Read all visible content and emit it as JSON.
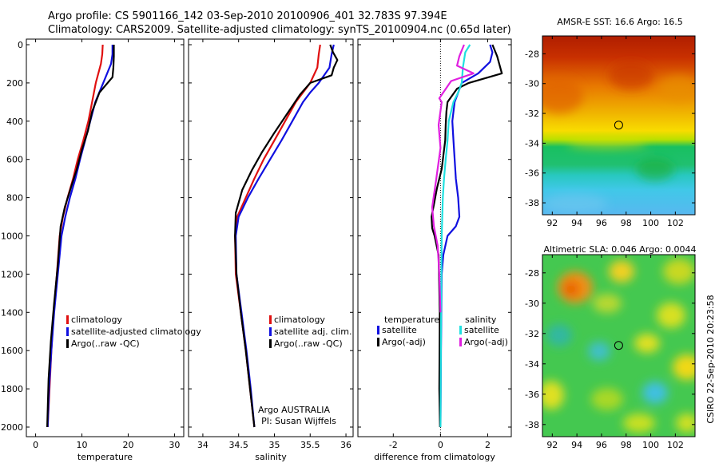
{
  "header": {
    "line1": "Argo profile: CS 5901166_142 03-Sep-2010 20100906_401 32.783S 97.394E",
    "line2": "Climatology: CARS2009. Satellite-adjusted climatology: synTS_20100904.nc (0.65d later)"
  },
  "side_text": "CSIRO 22-Sep-2010 20:23:58",
  "colors": {
    "climatology": "#e01010",
    "satellite": "#1010e0",
    "argo": "#000000",
    "sal_satellite": "#20e0e0",
    "sal_argo": "#e020e0"
  },
  "chart_data": [
    {
      "type": "line",
      "xlabel": "temperature",
      "ylabel": "",
      "xlim": [
        -2,
        32
      ],
      "ylim": [
        2050,
        0
      ],
      "xticks": [
        0,
        10,
        20,
        30
      ],
      "yticks": [
        0,
        200,
        400,
        600,
        800,
        1000,
        1200,
        1400,
        1600,
        1800,
        2000
      ],
      "legend": [
        "climatology",
        "satellite-adjusted climatology",
        "Argo(..raw -QC)"
      ],
      "series": [
        {
          "name": "climatology",
          "color": "climatology",
          "x": [
            14.5,
            14.4,
            14.1,
            13.0,
            12.2,
            11.4,
            10.3,
            9.1,
            8.1,
            6.9,
            5.9,
            5.2,
            4.6,
            3.9,
            3.4,
            3.0,
            2.6
          ],
          "y": [
            0,
            50,
            100,
            200,
            300,
            400,
            500,
            600,
            700,
            800,
            900,
            1000,
            1200,
            1400,
            1600,
            1800,
            2000
          ]
        },
        {
          "name": "satellite-adjusted climatology",
          "color": "satellite",
          "x": [
            16.6,
            16.6,
            16.3,
            14.6,
            12.9,
            11.8,
            10.7,
            9.6,
            8.6,
            7.4,
            6.4,
            5.6,
            4.8,
            4.0,
            3.4,
            2.9,
            2.6
          ],
          "y": [
            0,
            50,
            100,
            200,
            300,
            400,
            500,
            600,
            700,
            800,
            900,
            1000,
            1200,
            1400,
            1600,
            1800,
            2000
          ]
        },
        {
          "name": "Argo(..raw -QC)",
          "color": "argo",
          "x": [
            16.9,
            16.9,
            16.8,
            16.6,
            13.8,
            12.2,
            11.3,
            10.0,
            8.9,
            7.6,
            6.3,
            5.4,
            4.8,
            4.0,
            3.3,
            2.8,
            2.5
          ],
          "y": [
            0,
            60,
            120,
            170,
            250,
            350,
            450,
            550,
            650,
            750,
            850,
            950,
            1150,
            1350,
            1550,
            1750,
            2000
          ]
        }
      ]
    },
    {
      "type": "line",
      "xlabel": "salinity",
      "ylabel": "",
      "xlim": [
        33.8,
        36.1
      ],
      "ylim": [
        2050,
        0
      ],
      "xticks": [
        34,
        34.5,
        35,
        35.5,
        36
      ],
      "legend": [
        "climatology",
        "satellite adj. clim.",
        "Argo(..raw -QC)"
      ],
      "annotation": [
        "Argo AUSTRALIA",
        "PI: Susan Wijffels"
      ],
      "series": [
        {
          "name": "climatology",
          "color": "climatology",
          "x": [
            35.64,
            35.62,
            35.6,
            35.5,
            35.4,
            35.3,
            35.15,
            35.0,
            34.85,
            34.72,
            34.6,
            34.48,
            34.45,
            34.46,
            34.53,
            34.6,
            34.66,
            34.72
          ],
          "y": [
            0,
            50,
            120,
            200,
            250,
            300,
            400,
            500,
            600,
            700,
            800,
            900,
            1000,
            1200,
            1400,
            1600,
            1800,
            2000
          ]
        },
        {
          "name": "satellite adj. clim.",
          "color": "satellite",
          "x": [
            35.83,
            35.8,
            35.77,
            35.62,
            35.5,
            35.4,
            35.25,
            35.1,
            34.94,
            34.78,
            34.63,
            34.5,
            34.46,
            34.47,
            34.54,
            34.61,
            34.67,
            34.72
          ],
          "y": [
            0,
            50,
            120,
            200,
            250,
            300,
            400,
            500,
            600,
            700,
            800,
            900,
            1000,
            1200,
            1400,
            1600,
            1800,
            2000
          ]
        },
        {
          "name": "Argo(..raw -QC)",
          "color": "argo",
          "x": [
            35.78,
            35.82,
            35.88,
            35.83,
            35.8,
            35.5,
            35.36,
            35.18,
            35.0,
            34.83,
            34.68,
            34.55,
            34.46,
            34.45,
            34.47,
            34.53,
            34.6,
            34.66,
            34.72
          ],
          "y": [
            0,
            40,
            80,
            120,
            160,
            200,
            260,
            360,
            460,
            560,
            660,
            760,
            880,
            1000,
            1200,
            1400,
            1600,
            1800,
            2000
          ]
        }
      ]
    },
    {
      "type": "line",
      "xlabel": "difference from climatology",
      "ylabel": "",
      "xlim": [
        -3.5,
        3.0
      ],
      "ylim": [
        2050,
        0
      ],
      "xticks": [
        -2,
        0,
        2
      ],
      "legend_headers": [
        "temperature",
        "salinity"
      ],
      "legend": [
        "satellite",
        "Argo(-adj)",
        "satellite",
        "Argo(-adj)"
      ],
      "series": [
        {
          "name": "satellite",
          "color": "satellite",
          "x": [
            2.1,
            2.2,
            2.1,
            1.6,
            0.9,
            0.6,
            0.5,
            0.55,
            0.6,
            0.65,
            0.75,
            0.8,
            0.65,
            0.3,
            0.12,
            0.05,
            0.02,
            0.0
          ],
          "y": [
            0,
            40,
            90,
            150,
            200,
            300,
            400,
            500,
            600,
            700,
            800,
            900,
            950,
            1000,
            1100,
            1200,
            1600,
            2000
          ]
        },
        {
          "name": "Argo(-adj)",
          "color": "argo",
          "x": [
            2.2,
            2.4,
            2.6,
            1.2,
            0.7,
            0.3,
            0.25,
            0.22,
            0.2,
            0.05,
            -0.15,
            -0.3,
            -0.38,
            -0.35,
            -0.25,
            -0.08,
            -0.03,
            -0.05,
            -0.02
          ],
          "y": [
            0,
            60,
            150,
            200,
            230,
            300,
            350,
            420,
            500,
            650,
            750,
            850,
            900,
            960,
            1000,
            1100,
            1400,
            1800,
            2000
          ]
        },
        {
          "name": "satellite",
          "color": "sal_satellite",
          "x": [
            1.25,
            1.05,
            0.95,
            0.9,
            0.75,
            0.55,
            0.35,
            0.3,
            0.22,
            0.15,
            0.1,
            0.05,
            0.02,
            0.0
          ],
          "y": [
            0,
            40,
            120,
            200,
            250,
            300,
            400,
            500,
            600,
            700,
            800,
            1000,
            1500,
            2000
          ]
        },
        {
          "name": "Argo(-adj)",
          "color": "sal_argo",
          "x": [
            1.0,
            0.8,
            0.7,
            1.4,
            0.45,
            -0.05,
            0.05,
            -0.08,
            0.0,
            -0.2,
            -0.35,
            -0.28,
            -0.12,
            -0.05,
            0.0
          ],
          "y": [
            0,
            60,
            110,
            150,
            190,
            280,
            300,
            420,
            540,
            720,
            850,
            950,
            1050,
            1200,
            1400
          ]
        }
      ]
    },
    {
      "type": "heatmap",
      "title": "AMSR-E SST: 16.6 Argo: 16.5",
      "xlim": [
        91.2,
        103.6
      ],
      "ylim": [
        -38.8,
        -26.8
      ],
      "xticks": [
        92,
        94,
        96,
        98,
        100,
        102
      ],
      "yticks": [
        -28,
        -30,
        -32,
        -34,
        -36,
        -38
      ],
      "marker": [
        97.394,
        -32.783
      ]
    },
    {
      "type": "heatmap",
      "title": "Altimetric SLA: 0.046 Argo: 0.0044",
      "xlim": [
        91.2,
        103.6
      ],
      "ylim": [
        -38.8,
        -26.8
      ],
      "xticks": [
        92,
        94,
        96,
        98,
        100,
        102
      ],
      "yticks": [
        -28,
        -30,
        -32,
        -34,
        -36,
        -38
      ],
      "marker": [
        97.394,
        -32.783
      ]
    }
  ]
}
